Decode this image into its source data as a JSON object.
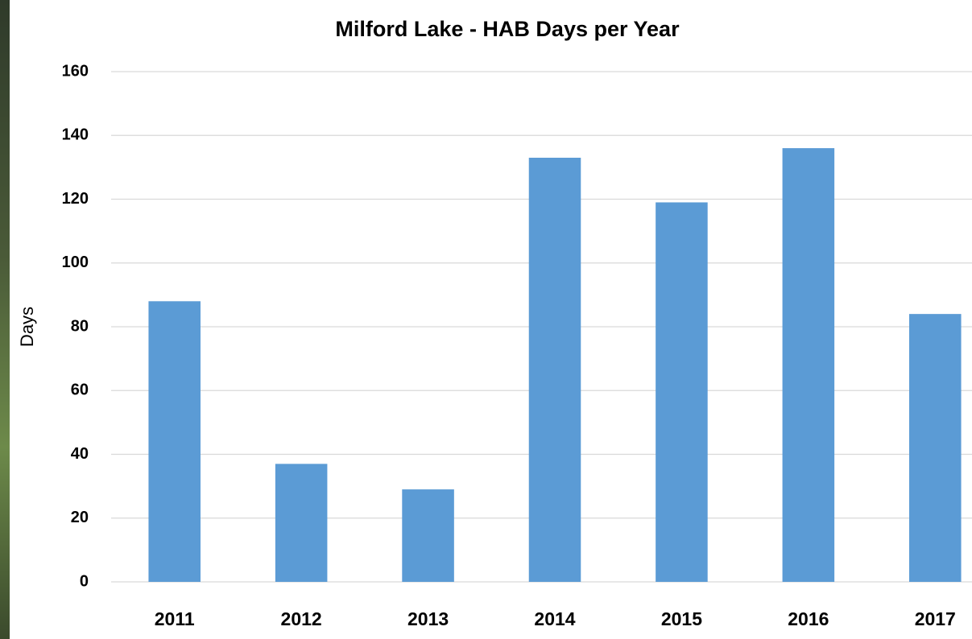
{
  "chart_data": {
    "type": "bar",
    "title": "Milford Lake - HAB Days per Year",
    "y_label": "Days",
    "categories": [
      "2011",
      "2012",
      "2013",
      "2014",
      "2015",
      "2016",
      "2017"
    ],
    "values": [
      88,
      37,
      29,
      133,
      119,
      136,
      84
    ],
    "color": "#5b9bd5",
    "ylim": [
      0,
      160
    ],
    "yticks": [
      0,
      20,
      40,
      60,
      80,
      100,
      120,
      140,
      160
    ],
    "grid": true
  }
}
